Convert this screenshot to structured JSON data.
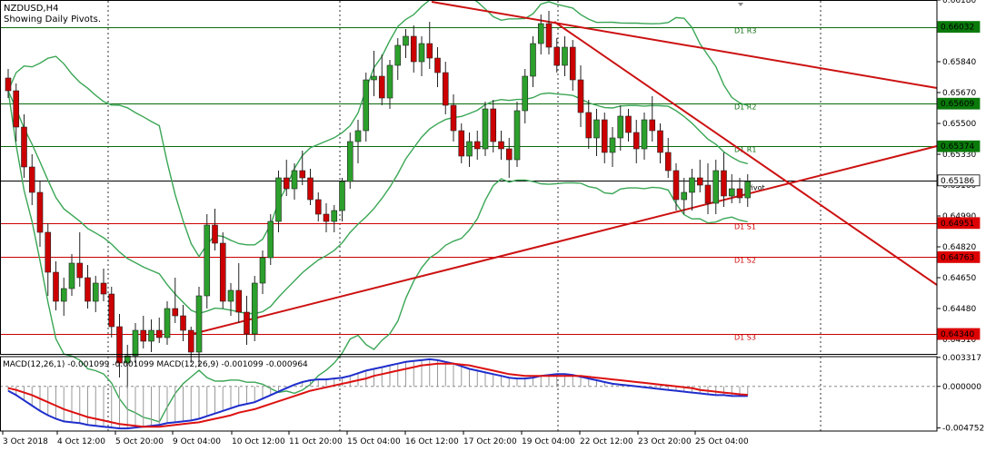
{
  "header": {
    "symbol": "NZDUSD,H4",
    "subtitle": "Showing Daily Pivots."
  },
  "colors": {
    "bull": "#2ca02c",
    "bear": "#cc0000",
    "bands": "#3aa655",
    "resistance": "#0a6b0a",
    "support": "#cc0000",
    "trendline": "#cc1111",
    "macd_line": "#1f2ecc",
    "signal_line": "#dd1111",
    "highlight_green": "#0a7a0a",
    "highlight_red": "#dd0000",
    "current_bg": "#ffffff"
  },
  "chart_data": [
    {
      "type": "candlestick",
      "symbol": "NZDUSD",
      "timeframe": "H4",
      "ylim": [
        0.6423,
        0.6618
      ],
      "y_ticks": [
        "0.66180",
        "0.65840",
        "0.65670",
        "0.65500",
        "0.65330",
        "0.65160",
        "0.64990",
        "0.64820",
        "0.64650",
        "0.64480",
        "0.64310"
      ],
      "x_ticks": [
        "3 Oct 2018",
        "4 Oct 12:00",
        "5 Oct 20:00",
        "9 Oct 04:00",
        "10 Oct 12:00",
        "11 Oct 20:00",
        "15 Oct 04:00",
        "16 Oct 12:00",
        "17 Oct 20:00",
        "19 Oct 04:00",
        "22 Oct 12:00",
        "23 Oct 20:00",
        "25 Oct 04:00"
      ],
      "pivots": [
        {
          "name": "D1 R3",
          "value": 0.66032,
          "label": "0.66032",
          "kind": "resistance"
        },
        {
          "name": "D1 R2",
          "value": 0.65609,
          "label": "0.65609",
          "kind": "resistance"
        },
        {
          "name": "D1 R1",
          "value": 0.65374,
          "label": "0.65374",
          "kind": "resistance"
        },
        {
          "name": "Pivot",
          "value": 0.65186,
          "label": "0.65186",
          "kind": "pivot"
        },
        {
          "name": "D1 S1",
          "value": 0.64951,
          "label": "0.64951",
          "kind": "support"
        },
        {
          "name": "D1 S2",
          "value": 0.64763,
          "label": "0.64763",
          "kind": "support"
        },
        {
          "name": "D1 S3",
          "value": 0.6434,
          "label": "0.64340",
          "kind": "support"
        }
      ],
      "current_price": {
        "value": 0.65186,
        "label": "0.65186"
      },
      "indicator": "Bollinger Bands (20)",
      "candles": [
        [
          0.6575,
          0.658,
          0.6564,
          0.6568
        ],
        [
          0.6568,
          0.6572,
          0.654,
          0.6548
        ],
        [
          0.6548,
          0.6555,
          0.652,
          0.6526
        ],
        [
          0.6526,
          0.6533,
          0.6505,
          0.6512
        ],
        [
          0.6512,
          0.6518,
          0.6482,
          0.649
        ],
        [
          0.649,
          0.6495,
          0.6455,
          0.6468
        ],
        [
          0.6468,
          0.6474,
          0.6447,
          0.6452
        ],
        [
          0.6452,
          0.6465,
          0.6444,
          0.6459
        ],
        [
          0.6459,
          0.6478,
          0.6455,
          0.6473
        ],
        [
          0.6473,
          0.649,
          0.646,
          0.6465
        ],
        [
          0.6465,
          0.6472,
          0.6448,
          0.6452
        ],
        [
          0.6452,
          0.6466,
          0.6446,
          0.6462
        ],
        [
          0.6462,
          0.647,
          0.6452,
          0.6456
        ],
        [
          0.6456,
          0.646,
          0.6432,
          0.6438
        ],
        [
          0.6438,
          0.6445,
          0.641,
          0.6418
        ],
        [
          0.6418,
          0.6428,
          0.6404,
          0.6422
        ],
        [
          0.6422,
          0.644,
          0.6418,
          0.6436
        ],
        [
          0.6436,
          0.6444,
          0.6426,
          0.643
        ],
        [
          0.643,
          0.6442,
          0.6424,
          0.6436
        ],
        [
          0.6436,
          0.6443,
          0.6429,
          0.6432
        ],
        [
          0.6432,
          0.6452,
          0.6428,
          0.6448
        ],
        [
          0.6448,
          0.6465,
          0.644,
          0.6444
        ],
        [
          0.6444,
          0.645,
          0.643,
          0.6436
        ],
        [
          0.6436,
          0.6438,
          0.6418,
          0.6424
        ],
        [
          0.6424,
          0.646,
          0.6416,
          0.6455
        ],
        [
          0.6455,
          0.65,
          0.6448,
          0.6494
        ],
        [
          0.6494,
          0.6503,
          0.648,
          0.6484
        ],
        [
          0.6484,
          0.649,
          0.6448,
          0.6452
        ],
        [
          0.6452,
          0.6462,
          0.6444,
          0.6458
        ],
        [
          0.6458,
          0.6473,
          0.644,
          0.6446
        ],
        [
          0.6446,
          0.6455,
          0.6428,
          0.6434
        ],
        [
          0.6434,
          0.6466,
          0.643,
          0.6462
        ],
        [
          0.6462,
          0.648,
          0.6456,
          0.6476
        ],
        [
          0.6476,
          0.65,
          0.6472,
          0.6496
        ],
        [
          0.6496,
          0.6524,
          0.649,
          0.652
        ],
        [
          0.652,
          0.653,
          0.651,
          0.6514
        ],
        [
          0.6514,
          0.6528,
          0.6508,
          0.6524
        ],
        [
          0.6524,
          0.6535,
          0.6516,
          0.652
        ],
        [
          0.652,
          0.6525,
          0.6505,
          0.6508
        ],
        [
          0.6508,
          0.6512,
          0.6496,
          0.65
        ],
        [
          0.65,
          0.6506,
          0.649,
          0.6496
        ],
        [
          0.6496,
          0.6505,
          0.649,
          0.6502
        ],
        [
          0.6502,
          0.652,
          0.6496,
          0.6518
        ],
        [
          0.6518,
          0.6545,
          0.6514,
          0.654
        ],
        [
          0.654,
          0.6552,
          0.6528,
          0.6546
        ],
        [
          0.6546,
          0.6578,
          0.654,
          0.6574
        ],
        [
          0.6574,
          0.659,
          0.6565,
          0.6576
        ],
        [
          0.6576,
          0.6588,
          0.656,
          0.6564
        ],
        [
          0.6564,
          0.6585,
          0.6558,
          0.6582
        ],
        [
          0.6582,
          0.6597,
          0.6574,
          0.6593
        ],
        [
          0.6593,
          0.6602,
          0.6586,
          0.6598
        ],
        [
          0.6598,
          0.6604,
          0.6578,
          0.6584
        ],
        [
          0.6584,
          0.6598,
          0.6576,
          0.6594
        ],
        [
          0.6594,
          0.6606,
          0.658,
          0.6586
        ],
        [
          0.6586,
          0.6592,
          0.657,
          0.6578
        ],
        [
          0.6578,
          0.6584,
          0.6555,
          0.656
        ],
        [
          0.656,
          0.6566,
          0.654,
          0.6546
        ],
        [
          0.6546,
          0.655,
          0.6528,
          0.6532
        ],
        [
          0.6532,
          0.6545,
          0.6526,
          0.654
        ],
        [
          0.654,
          0.6546,
          0.653,
          0.6536
        ],
        [
          0.6536,
          0.6562,
          0.6532,
          0.6558
        ],
        [
          0.6558,
          0.6563,
          0.6534,
          0.654
        ],
        [
          0.654,
          0.6546,
          0.653,
          0.6536
        ],
        [
          0.6536,
          0.6542,
          0.652,
          0.653
        ],
        [
          0.653,
          0.6562,
          0.6526,
          0.6557
        ],
        [
          0.6557,
          0.658,
          0.655,
          0.6576
        ],
        [
          0.6576,
          0.6598,
          0.657,
          0.6594
        ],
        [
          0.6594,
          0.661,
          0.6588,
          0.6605
        ],
        [
          0.6605,
          0.6612,
          0.6588,
          0.6592
        ],
        [
          0.6592,
          0.6597,
          0.6578,
          0.6582
        ],
        [
          0.6582,
          0.6598,
          0.6576,
          0.6592
        ],
        [
          0.6592,
          0.6596,
          0.6568,
          0.6574
        ],
        [
          0.6574,
          0.6582,
          0.6548,
          0.6556
        ],
        [
          0.6556,
          0.6563,
          0.6536,
          0.6542
        ],
        [
          0.6542,
          0.6558,
          0.6532,
          0.6552
        ],
        [
          0.6552,
          0.6556,
          0.6528,
          0.6534
        ],
        [
          0.6534,
          0.6548,
          0.6526,
          0.6542
        ],
        [
          0.6542,
          0.656,
          0.6535,
          0.6554
        ],
        [
          0.6554,
          0.6558,
          0.654,
          0.6545
        ],
        [
          0.6545,
          0.6552,
          0.6528,
          0.6536
        ],
        [
          0.6536,
          0.6556,
          0.653,
          0.6552
        ],
        [
          0.6552,
          0.6565,
          0.654,
          0.6546
        ],
        [
          0.6546,
          0.655,
          0.6528,
          0.6534
        ],
        [
          0.6534,
          0.6542,
          0.652,
          0.6524
        ],
        [
          0.6524,
          0.6528,
          0.6502,
          0.6508
        ],
        [
          0.6508,
          0.652,
          0.65,
          0.6512
        ],
        [
          0.6512,
          0.6525,
          0.6502,
          0.652
        ],
        [
          0.652,
          0.653,
          0.6512,
          0.6516
        ],
        [
          0.6516,
          0.6528,
          0.65,
          0.6506
        ],
        [
          0.6506,
          0.653,
          0.65,
          0.6524
        ],
        [
          0.6524,
          0.6534,
          0.6504,
          0.651
        ],
        [
          0.651,
          0.6522,
          0.6506,
          0.6514
        ],
        [
          0.6514,
          0.652,
          0.6506,
          0.6509
        ],
        [
          0.6509,
          0.6522,
          0.6504,
          0.6518
        ]
      ]
    },
    {
      "type": "line",
      "name": "MACD",
      "title": "MACD(12,26,1) -0.001099 -0.001099 MACD(12,26,9) -0.001099 -0.000964",
      "ylim": [
        -0.0051,
        0.0034
      ],
      "y_ticks": [
        "0.003317",
        "0.000000",
        "-0.004752"
      ],
      "series": [
        {
          "name": "MACD(12,26,1)",
          "values": [
            -0.0005,
            -0.001,
            -0.0016,
            -0.0022,
            -0.0028,
            -0.0033,
            -0.0037,
            -0.004,
            -0.0041,
            -0.0042,
            -0.0044,
            -0.0045,
            -0.0046,
            -0.0047,
            -0.0048,
            -0.0048,
            -0.0047,
            -0.0046,
            -0.0045,
            -0.0044,
            -0.0042,
            -0.0041,
            -0.004,
            -0.0039,
            -0.0037,
            -0.0034,
            -0.0031,
            -0.0028,
            -0.0025,
            -0.0022,
            -0.002,
            -0.0018,
            -0.0014,
            -0.001,
            -0.0006,
            -0.0002,
            0.0002,
            0.0005,
            0.0007,
            0.0008,
            0.0008,
            0.0009,
            0.001,
            0.0012,
            0.0015,
            0.0018,
            0.002,
            0.0022,
            0.0024,
            0.0026,
            0.0028,
            0.0029,
            0.003,
            0.0031,
            0.003,
            0.0028,
            0.0026,
            0.0023,
            0.002,
            0.0018,
            0.0016,
            0.0014,
            0.0012,
            0.001,
            0.0009,
            0.0009,
            0.001,
            0.0012,
            0.0013,
            0.0014,
            0.0014,
            0.0013,
            0.0011,
            0.0009,
            0.0007,
            0.0005,
            0.0003,
            0.0002,
            0.0001,
            0.0,
            -0.0001,
            -0.0002,
            -0.0003,
            -0.0004,
            -0.0005,
            -0.0006,
            -0.0007,
            -0.0008,
            -0.0009,
            -0.001,
            -0.001,
            -0.0011,
            -0.0011,
            -0.0011
          ]
        },
        {
          "name": "MACD(12,26,9)",
          "values": [
            -0.0002,
            -0.0004,
            -0.0007,
            -0.001,
            -0.0014,
            -0.0018,
            -0.0022,
            -0.0026,
            -0.0029,
            -0.0032,
            -0.0035,
            -0.0037,
            -0.0039,
            -0.0041,
            -0.0043,
            -0.0044,
            -0.0045,
            -0.0046,
            -0.0046,
            -0.0046,
            -0.0045,
            -0.0044,
            -0.0043,
            -0.0042,
            -0.0041,
            -0.0039,
            -0.0037,
            -0.0035,
            -0.0033,
            -0.003,
            -0.0028,
            -0.0026,
            -0.0023,
            -0.002,
            -0.0017,
            -0.0014,
            -0.0011,
            -0.0008,
            -0.0005,
            -0.0003,
            -0.0001,
            0.0001,
            0.0003,
            0.0005,
            0.0007,
            0.0009,
            0.0012,
            0.0014,
            0.0016,
            0.0018,
            0.002,
            0.0022,
            0.0024,
            0.0025,
            0.0026,
            0.0026,
            0.0026,
            0.0025,
            0.0024,
            0.0022,
            0.002,
            0.0018,
            0.0016,
            0.0014,
            0.0013,
            0.0012,
            0.0012,
            0.0012,
            0.0012,
            0.0012,
            0.0012,
            0.0012,
            0.0012,
            0.0011,
            0.001,
            0.0009,
            0.0008,
            0.0007,
            0.0006,
            0.0005,
            0.0004,
            0.0003,
            0.0002,
            0.0001,
            0.0,
            -0.0001,
            -0.0002,
            -0.0004,
            -0.0005,
            -0.0006,
            -0.0007,
            -0.0008,
            -0.0009,
            -0.00096
          ]
        }
      ]
    }
  ]
}
